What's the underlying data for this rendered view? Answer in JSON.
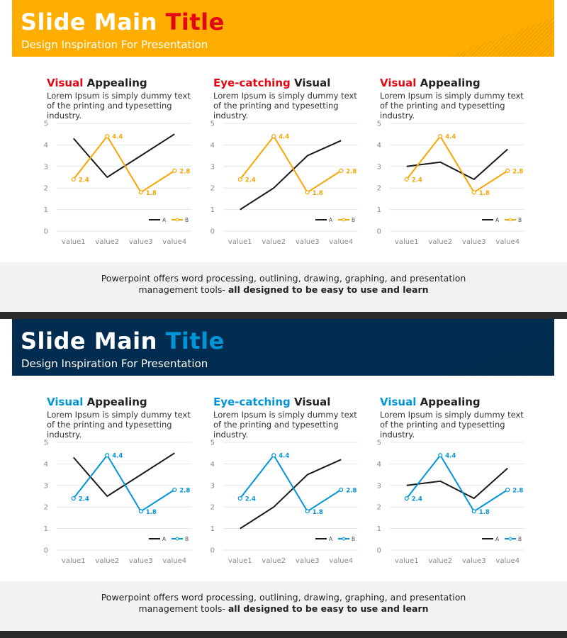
{
  "slides": [
    {
      "title_prefix": "Slide Main",
      "title_accent": "Title",
      "subtitle": "Design Inspiration For Presentation",
      "header_color": "#FFAE00",
      "accent_color": "#E30613",
      "footer_text": "Powerpoint offers word processing, outlining, drawing, graphing, and presentation",
      "footer_text2": "management tools-",
      "footer_bold": "all designed to be easy to use and learn",
      "panels": [
        {
          "title_accent": "Visual",
          "title_rest": "Appealing",
          "desc": "Lorem Ipsum is simply dummy text of the printing and typesetting industry."
        },
        {
          "title_accent": "Eye-catching",
          "title_rest": "Visual",
          "desc": "Lorem Ipsum is simply dummy text of the printing and typesetting industry."
        },
        {
          "title_accent": "Visual",
          "title_rest": "Appealing",
          "desc": "Lorem Ipsum is simply dummy text of the printing and typesetting industry."
        }
      ]
    },
    {
      "title_prefix": "Slide Main",
      "title_accent": "Title",
      "subtitle": "Design Inspiration For Presentation",
      "header_color": "#022D50",
      "accent_color": "#0094D9",
      "footer_text": "Powerpoint offers word processing, outlining, drawing, graphing, and presentation",
      "footer_text2": "management tools-",
      "footer_bold": "all designed to be easy to use and learn",
      "panels": [
        {
          "title_accent": "Visual",
          "title_rest": "Appealing",
          "desc": "Lorem Ipsum is simply dummy text of the printing and typesetting industry."
        },
        {
          "title_accent": "Eye-catching",
          "title_rest": "Visual",
          "desc": "Lorem Ipsum is simply dummy text of the printing and typesetting industry."
        },
        {
          "title_accent": "Visual",
          "title_rest": "Appealing",
          "desc": "Lorem Ipsum is simply dummy text of the printing and typesetting industry."
        }
      ]
    }
  ],
  "chart_data": [
    {
      "type": "line",
      "slide": 0,
      "panel": 0,
      "categories": [
        "value1",
        "value2",
        "value3",
        "value4"
      ],
      "ylim": [
        0,
        5
      ],
      "yticks": [
        0,
        1,
        2,
        3,
        4,
        5
      ],
      "series": [
        {
          "name": "A",
          "values": [
            4.3,
            2.5,
            3.5,
            4.5
          ],
          "color": "#1a1a1a"
        },
        {
          "name": "B",
          "values": [
            2.4,
            4.4,
            1.8,
            2.8
          ],
          "color": "#F7A600",
          "labels": true
        }
      ],
      "legend": "bottom-right"
    },
    {
      "type": "line",
      "slide": 0,
      "panel": 1,
      "categories": [
        "value1",
        "value2",
        "value3",
        "value4"
      ],
      "ylim": [
        0,
        5
      ],
      "yticks": [
        0,
        1,
        2,
        3,
        4,
        5
      ],
      "series": [
        {
          "name": "A",
          "values": [
            1.0,
            2.0,
            3.5,
            4.2
          ],
          "color": "#1a1a1a"
        },
        {
          "name": "B",
          "values": [
            2.4,
            4.4,
            1.8,
            2.8
          ],
          "color": "#F7A600",
          "labels": true
        }
      ],
      "legend": "bottom-right"
    },
    {
      "type": "line",
      "slide": 0,
      "panel": 2,
      "categories": [
        "value1",
        "value2",
        "value3",
        "value4"
      ],
      "ylim": [
        0,
        5
      ],
      "yticks": [
        0,
        1,
        2,
        3,
        4,
        5
      ],
      "series": [
        {
          "name": "A",
          "values": [
            3.0,
            3.2,
            2.4,
            3.8
          ],
          "color": "#1a1a1a"
        },
        {
          "name": "B",
          "values": [
            2.4,
            4.4,
            1.8,
            2.8
          ],
          "color": "#F7A600",
          "labels": true
        }
      ],
      "legend": "bottom-right"
    },
    {
      "type": "line",
      "slide": 1,
      "panel": 0,
      "categories": [
        "value1",
        "value2",
        "value3",
        "value4"
      ],
      "ylim": [
        0,
        5
      ],
      "yticks": [
        0,
        1,
        2,
        3,
        4,
        5
      ],
      "series": [
        {
          "name": "A",
          "values": [
            4.3,
            2.5,
            3.5,
            4.5
          ],
          "color": "#1a1a1a"
        },
        {
          "name": "B",
          "values": [
            2.4,
            4.4,
            1.8,
            2.8
          ],
          "color": "#0094D9",
          "labels": true
        }
      ],
      "legend": "bottom-right"
    },
    {
      "type": "line",
      "slide": 1,
      "panel": 1,
      "categories": [
        "value1",
        "value2",
        "value3",
        "value4"
      ],
      "ylim": [
        0,
        5
      ],
      "yticks": [
        0,
        1,
        2,
        3,
        4,
        5
      ],
      "series": [
        {
          "name": "A",
          "values": [
            1.0,
            2.0,
            3.5,
            4.2
          ],
          "color": "#1a1a1a"
        },
        {
          "name": "B",
          "values": [
            2.4,
            4.4,
            1.8,
            2.8
          ],
          "color": "#0094D9",
          "labels": true
        }
      ],
      "legend": "bottom-right"
    },
    {
      "type": "line",
      "slide": 1,
      "panel": 2,
      "categories": [
        "value1",
        "value2",
        "value3",
        "value4"
      ],
      "ylim": [
        0,
        5
      ],
      "yticks": [
        0,
        1,
        2,
        3,
        4,
        5
      ],
      "series": [
        {
          "name": "A",
          "values": [
            3.0,
            3.2,
            2.4,
            3.8
          ],
          "color": "#1a1a1a"
        },
        {
          "name": "B",
          "values": [
            2.4,
            4.4,
            1.8,
            2.8
          ],
          "color": "#0094D9",
          "labels": true
        }
      ],
      "legend": "bottom-right"
    }
  ]
}
